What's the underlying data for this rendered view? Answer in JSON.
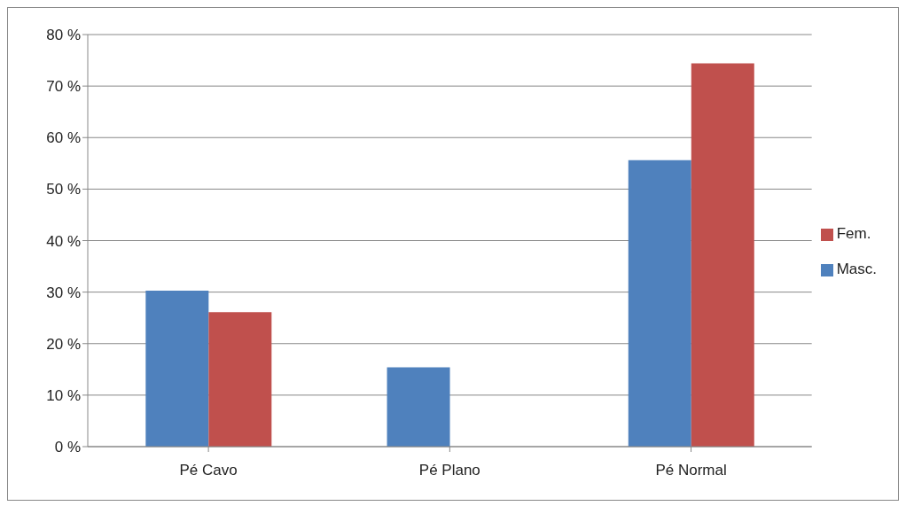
{
  "chart_data": {
    "type": "bar",
    "categories": [
      "Pé Cavo",
      "Pé Plano",
      "Pé Normal"
    ],
    "series": [
      {
        "name": "Masc.",
        "color": "#4f81bd",
        "values": [
          30.3,
          15.4,
          55.6
        ]
      },
      {
        "name": "Fem.",
        "color": "#c0504d",
        "values": [
          26.1,
          null,
          74.4
        ]
      }
    ],
    "ylim": [
      0,
      80
    ],
    "yticks": [
      {
        "value": 0,
        "label": "0 %"
      },
      {
        "value": 10,
        "label": "10 %"
      },
      {
        "value": 20,
        "label": "20 %"
      },
      {
        "value": 30,
        "label": "30 %"
      },
      {
        "value": 40,
        "label": "40 %"
      },
      {
        "value": 50,
        "label": "50 %"
      },
      {
        "value": 60,
        "label": "60 %"
      },
      {
        "value": 70,
        "label": "70 %"
      },
      {
        "value": 80,
        "label": "80 %"
      }
    ],
    "grid": "y",
    "legend": "right"
  }
}
